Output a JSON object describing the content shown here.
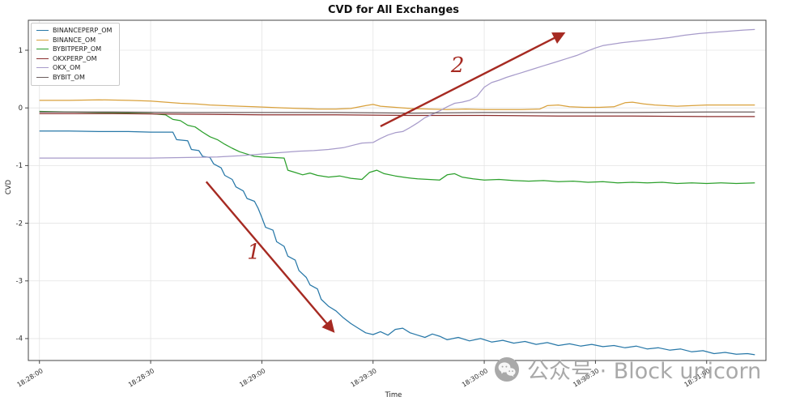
{
  "figure": {
    "watermark_text": "公众号 · Block unicorn"
  },
  "colors": {
    "annotation": "#a62a22",
    "watermark": "#a9a9a9",
    "grid": "#e4e4e4",
    "spine": "#454545",
    "tick_text": "#2b2b2b"
  },
  "chart_data": {
    "type": "line",
    "title": "CVD for All Exchanges",
    "xlabel": "Time",
    "ylabel": "CVD",
    "x_unit": "seconds after 18:28:00",
    "xlim": [
      -3,
      196
    ],
    "ylim": [
      -4.38,
      1.52
    ],
    "grid": true,
    "legend_position": "upper left",
    "x_ticks": [
      {
        "t": 0,
        "label": "18:28:00"
      },
      {
        "t": 30,
        "label": "18:28:30"
      },
      {
        "t": 60,
        "label": "18:29:00"
      },
      {
        "t": 90,
        "label": "18:29:30"
      },
      {
        "t": 120,
        "label": "18:30:00"
      },
      {
        "t": 150,
        "label": "18:30:30"
      },
      {
        "t": 180,
        "label": "18:31:00"
      }
    ],
    "y_ticks": [
      1,
      0,
      -1,
      -2,
      -3,
      -4
    ],
    "series": [
      {
        "name": "BINANCEPERP_OM",
        "color": "#2878a8",
        "points": [
          [
            0,
            -0.4
          ],
          [
            8,
            -0.4
          ],
          [
            16,
            -0.41
          ],
          [
            24,
            -0.41
          ],
          [
            30,
            -0.42
          ],
          [
            36,
            -0.42
          ],
          [
            37,
            -0.55
          ],
          [
            40,
            -0.57
          ],
          [
            41,
            -0.72
          ],
          [
            43,
            -0.74
          ],
          [
            44,
            -0.84
          ],
          [
            46,
            -0.86
          ],
          [
            47,
            -0.97
          ],
          [
            49,
            -1.04
          ],
          [
            50,
            -1.17
          ],
          [
            52,
            -1.24
          ],
          [
            53,
            -1.37
          ],
          [
            55,
            -1.44
          ],
          [
            56,
            -1.57
          ],
          [
            58,
            -1.62
          ],
          [
            59,
            -1.74
          ],
          [
            60,
            -1.9
          ],
          [
            61,
            -2.07
          ],
          [
            63,
            -2.12
          ],
          [
            64,
            -2.32
          ],
          [
            66,
            -2.4
          ],
          [
            67,
            -2.57
          ],
          [
            69,
            -2.64
          ],
          [
            70,
            -2.82
          ],
          [
            72,
            -2.94
          ],
          [
            73,
            -3.07
          ],
          [
            75,
            -3.14
          ],
          [
            76,
            -3.32
          ],
          [
            78,
            -3.44
          ],
          [
            80,
            -3.52
          ],
          [
            82,
            -3.64
          ],
          [
            84,
            -3.74
          ],
          [
            86,
            -3.82
          ],
          [
            88,
            -3.9
          ],
          [
            90,
            -3.93
          ],
          [
            92,
            -3.88
          ],
          [
            94,
            -3.94
          ],
          [
            96,
            -3.84
          ],
          [
            98,
            -3.82
          ],
          [
            100,
            -3.9
          ],
          [
            102,
            -3.94
          ],
          [
            104,
            -3.98
          ],
          [
            106,
            -3.92
          ],
          [
            108,
            -3.96
          ],
          [
            110,
            -4.02
          ],
          [
            113,
            -3.98
          ],
          [
            116,
            -4.04
          ],
          [
            119,
            -4.0
          ],
          [
            122,
            -4.06
          ],
          [
            125,
            -4.03
          ],
          [
            128,
            -4.08
          ],
          [
            131,
            -4.05
          ],
          [
            134,
            -4.1
          ],
          [
            137,
            -4.07
          ],
          [
            140,
            -4.12
          ],
          [
            143,
            -4.09
          ],
          [
            146,
            -4.13
          ],
          [
            149,
            -4.1
          ],
          [
            152,
            -4.14
          ],
          [
            155,
            -4.12
          ],
          [
            158,
            -4.16
          ],
          [
            161,
            -4.13
          ],
          [
            164,
            -4.18
          ],
          [
            167,
            -4.16
          ],
          [
            170,
            -4.2
          ],
          [
            173,
            -4.18
          ],
          [
            176,
            -4.23
          ],
          [
            179,
            -4.21
          ],
          [
            182,
            -4.26
          ],
          [
            185,
            -4.24
          ],
          [
            188,
            -4.27
          ],
          [
            191,
            -4.26
          ],
          [
            193,
            -4.28
          ]
        ]
      },
      {
        "name": "BINANCE_OM",
        "color": "#d9a13c",
        "points": [
          [
            0,
            0.13
          ],
          [
            8,
            0.13
          ],
          [
            16,
            0.14
          ],
          [
            24,
            0.13
          ],
          [
            30,
            0.12
          ],
          [
            34,
            0.1
          ],
          [
            38,
            0.08
          ],
          [
            42,
            0.07
          ],
          [
            46,
            0.05
          ],
          [
            50,
            0.04
          ],
          [
            54,
            0.03
          ],
          [
            58,
            0.02
          ],
          [
            62,
            0.01
          ],
          [
            66,
            0.0
          ],
          [
            70,
            -0.01
          ],
          [
            75,
            -0.02
          ],
          [
            80,
            -0.02
          ],
          [
            84,
            -0.01
          ],
          [
            88,
            0.04
          ],
          [
            90,
            0.06
          ],
          [
            92,
            0.03
          ],
          [
            96,
            0.01
          ],
          [
            100,
            -0.01
          ],
          [
            105,
            -0.02
          ],
          [
            110,
            -0.03
          ],
          [
            115,
            -0.02
          ],
          [
            120,
            -0.03
          ],
          [
            125,
            -0.03
          ],
          [
            130,
            -0.03
          ],
          [
            135,
            -0.02
          ],
          [
            137,
            0.04
          ],
          [
            140,
            0.05
          ],
          [
            143,
            0.02
          ],
          [
            147,
            0.01
          ],
          [
            151,
            0.01
          ],
          [
            155,
            0.02
          ],
          [
            158,
            0.09
          ],
          [
            160,
            0.1
          ],
          [
            163,
            0.07
          ],
          [
            166,
            0.05
          ],
          [
            169,
            0.04
          ],
          [
            172,
            0.03
          ],
          [
            176,
            0.04
          ],
          [
            180,
            0.05
          ],
          [
            185,
            0.05
          ],
          [
            190,
            0.05
          ],
          [
            193,
            0.05
          ]
        ]
      },
      {
        "name": "BYBITPERP_OM",
        "color": "#2ca02c",
        "points": [
          [
            0,
            -0.06
          ],
          [
            8,
            -0.07
          ],
          [
            16,
            -0.08
          ],
          [
            24,
            -0.09
          ],
          [
            30,
            -0.1
          ],
          [
            34,
            -0.12
          ],
          [
            36,
            -0.2
          ],
          [
            38,
            -0.22
          ],
          [
            40,
            -0.3
          ],
          [
            42,
            -0.33
          ],
          [
            44,
            -0.42
          ],
          [
            46,
            -0.5
          ],
          [
            48,
            -0.55
          ],
          [
            50,
            -0.63
          ],
          [
            52,
            -0.7
          ],
          [
            54,
            -0.76
          ],
          [
            56,
            -0.8
          ],
          [
            58,
            -0.84
          ],
          [
            60,
            -0.85
          ],
          [
            63,
            -0.86
          ],
          [
            66,
            -0.87
          ],
          [
            67,
            -1.08
          ],
          [
            69,
            -1.12
          ],
          [
            71,
            -1.16
          ],
          [
            73,
            -1.13
          ],
          [
            75,
            -1.17
          ],
          [
            78,
            -1.2
          ],
          [
            81,
            -1.18
          ],
          [
            84,
            -1.22
          ],
          [
            87,
            -1.24
          ],
          [
            89,
            -1.12
          ],
          [
            91,
            -1.08
          ],
          [
            93,
            -1.14
          ],
          [
            96,
            -1.18
          ],
          [
            99,
            -1.21
          ],
          [
            102,
            -1.23
          ],
          [
            105,
            -1.24
          ],
          [
            108,
            -1.25
          ],
          [
            110,
            -1.16
          ],
          [
            112,
            -1.14
          ],
          [
            114,
            -1.2
          ],
          [
            117,
            -1.23
          ],
          [
            120,
            -1.25
          ],
          [
            124,
            -1.24
          ],
          [
            128,
            -1.26
          ],
          [
            132,
            -1.27
          ],
          [
            136,
            -1.26
          ],
          [
            140,
            -1.28
          ],
          [
            144,
            -1.27
          ],
          [
            148,
            -1.29
          ],
          [
            152,
            -1.28
          ],
          [
            156,
            -1.3
          ],
          [
            160,
            -1.29
          ],
          [
            164,
            -1.3
          ],
          [
            168,
            -1.29
          ],
          [
            172,
            -1.31
          ],
          [
            176,
            -1.3
          ],
          [
            180,
            -1.31
          ],
          [
            184,
            -1.3
          ],
          [
            188,
            -1.31
          ],
          [
            193,
            -1.3
          ]
        ]
      },
      {
        "name": "OKXPERP_OM",
        "color": "#8b2e2e",
        "points": [
          [
            0,
            -0.1
          ],
          [
            20,
            -0.1
          ],
          [
            40,
            -0.11
          ],
          [
            60,
            -0.12
          ],
          [
            80,
            -0.12
          ],
          [
            100,
            -0.13
          ],
          [
            120,
            -0.13
          ],
          [
            140,
            -0.14
          ],
          [
            160,
            -0.14
          ],
          [
            180,
            -0.15
          ],
          [
            193,
            -0.15
          ]
        ]
      },
      {
        "name": "OKX_OM",
        "color": "#a79bca",
        "points": [
          [
            0,
            -0.87
          ],
          [
            10,
            -0.87
          ],
          [
            20,
            -0.87
          ],
          [
            30,
            -0.87
          ],
          [
            40,
            -0.86
          ],
          [
            48,
            -0.85
          ],
          [
            54,
            -0.83
          ],
          [
            58,
            -0.81
          ],
          [
            62,
            -0.79
          ],
          [
            66,
            -0.77
          ],
          [
            70,
            -0.75
          ],
          [
            74,
            -0.74
          ],
          [
            78,
            -0.72
          ],
          [
            82,
            -0.69
          ],
          [
            85,
            -0.64
          ],
          [
            87,
            -0.61
          ],
          [
            90,
            -0.6
          ],
          [
            92,
            -0.53
          ],
          [
            94,
            -0.47
          ],
          [
            96,
            -0.43
          ],
          [
            98,
            -0.41
          ],
          [
            100,
            -0.34
          ],
          [
            102,
            -0.26
          ],
          [
            104,
            -0.17
          ],
          [
            106,
            -0.11
          ],
          [
            108,
            -0.05
          ],
          [
            110,
            0.02
          ],
          [
            112,
            0.08
          ],
          [
            114,
            0.1
          ],
          [
            116,
            0.13
          ],
          [
            118,
            0.2
          ],
          [
            120,
            0.36
          ],
          [
            122,
            0.44
          ],
          [
            124,
            0.48
          ],
          [
            126,
            0.53
          ],
          [
            128,
            0.57
          ],
          [
            130,
            0.61
          ],
          [
            133,
            0.67
          ],
          [
            136,
            0.73
          ],
          [
            139,
            0.79
          ],
          [
            142,
            0.85
          ],
          [
            145,
            0.91
          ],
          [
            148,
            0.99
          ],
          [
            150,
            1.04
          ],
          [
            152,
            1.08
          ],
          [
            154,
            1.1
          ],
          [
            157,
            1.13
          ],
          [
            160,
            1.15
          ],
          [
            163,
            1.17
          ],
          [
            166,
            1.19
          ],
          [
            170,
            1.22
          ],
          [
            174,
            1.26
          ],
          [
            178,
            1.29
          ],
          [
            182,
            1.31
          ],
          [
            186,
            1.33
          ],
          [
            190,
            1.35
          ],
          [
            193,
            1.36
          ]
        ]
      },
      {
        "name": "BYBIT_OM",
        "color": "#6b5c5c",
        "points": [
          [
            0,
            -0.07
          ],
          [
            20,
            -0.07
          ],
          [
            40,
            -0.08
          ],
          [
            60,
            -0.08
          ],
          [
            80,
            -0.08
          ],
          [
            100,
            -0.09
          ],
          [
            120,
            -0.08
          ],
          [
            140,
            -0.08
          ],
          [
            160,
            -0.08
          ],
          [
            180,
            -0.07
          ],
          [
            193,
            -0.07
          ]
        ]
      }
    ],
    "annotations": [
      {
        "label": "1",
        "from": [
          45,
          -1.28
        ],
        "to": [
          79,
          -3.85
        ],
        "label_at": [
          56,
          -2.62
        ]
      },
      {
        "label": "2",
        "from": [
          92,
          -0.32
        ],
        "to": [
          141,
          1.28
        ],
        "label_at": [
          111,
          0.62
        ]
      }
    ]
  }
}
